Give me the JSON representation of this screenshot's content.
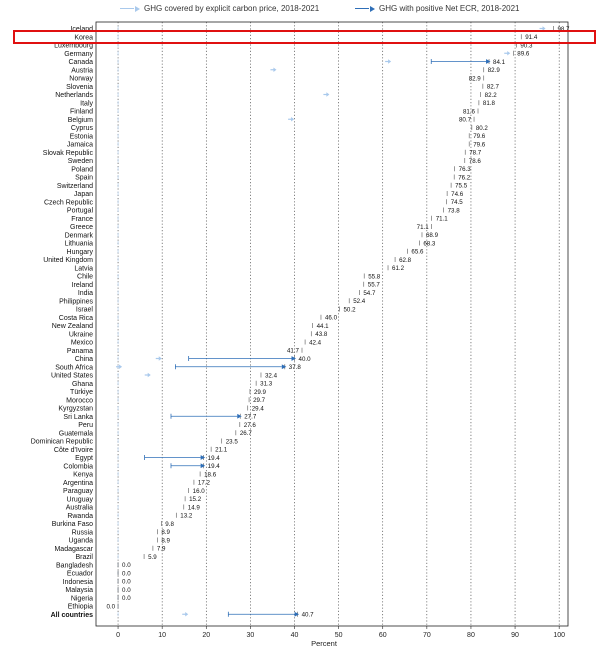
{
  "chart_data": {
    "type": "dot-arrow",
    "title": "",
    "xlabel": "Percent",
    "ylabel": "",
    "xlim": [
      -5,
      102
    ],
    "xticks": [
      0,
      10,
      20,
      30,
      40,
      50,
      60,
      70,
      80,
      90,
      100
    ],
    "grid": "vertical dotted",
    "legend_position": "top",
    "highlighted_category": "Korea",
    "series": [
      {
        "name": "GHG covered by explicit carbon price, 2018-2021",
        "color": "#a9c9ec"
      },
      {
        "name": "GHG with positive Net ECR, 2018-2021",
        "color": "#2f6fb8"
      }
    ],
    "categories": [
      "Iceland",
      "Korea",
      "Luxembourg",
      "Germany",
      "Canada",
      "Austria",
      "Norway",
      "Slovenia",
      "Netherlands",
      "Italy",
      "Finland",
      "Belgium",
      "Cyprus",
      "Estonia",
      "Jamaica",
      "Slovak Republic",
      "Sweden",
      "Poland",
      "Spain",
      "Switzerland",
      "Japan",
      "Czech Republic",
      "Portugal",
      "France",
      "Greece",
      "Denmark",
      "Lithuania",
      "Hungary",
      "United Kingdom",
      "Latvia",
      "Chile",
      "Ireland",
      "India",
      "Philippines",
      "Israel",
      "Costa Rica",
      "New Zealand",
      "Ukraine",
      "Mexico",
      "Panama",
      "China",
      "South Africa",
      "United States",
      "Ghana",
      "Türkiye",
      "Morocco",
      "Kyrgyzstan",
      "Sri Lanka",
      "Peru",
      "Guatemala",
      "Dominican Republic",
      "Côte d'Ivoire",
      "Egypt",
      "Colombia",
      "Kenya",
      "Argentina",
      "Paraguay",
      "Uruguay",
      "Australia",
      "Rwanda",
      "Burkina Faso",
      "Russia",
      "Uganda",
      "Madagascar",
      "Brazil",
      "Bangladesh",
      "Ecuador",
      "Indonesia",
      "Malaysia",
      "Nigeria",
      "Ethiopia",
      "All countries"
    ],
    "net_ecr_labels": [
      "98.7",
      "91.4",
      "90.3",
      "89.6",
      "84.1",
      "82.9",
      "82.9",
      "82.7",
      "82.2",
      "81.8",
      "81.6",
      "80.7",
      "80.2",
      "79.6",
      "79.6",
      "78.7",
      "78.6",
      "76.3",
      "76.2",
      "75.5",
      "74.6",
      "74.5",
      "73.8",
      "71.1",
      "71.1",
      "68.9",
      "68.3",
      "65.6",
      "62.8",
      "61.2",
      "55.8",
      "55.7",
      "54.7",
      "52.4",
      "50.2",
      "46.0",
      "44.1",
      "43.8",
      "42.4",
      "41.7",
      "40.0",
      "37.8",
      "32.4",
      "31.3",
      "29.9",
      "29.7",
      "29.4",
      "27.7",
      "27.6",
      "26.7",
      "23.5",
      "21.1",
      "19.4",
      "19.4",
      "18.6",
      "17.2",
      "16.0",
      "15.2",
      "14.9",
      "13.2",
      "9.8",
      "8.9",
      "8.9",
      "7.9",
      "5.9",
      "0.0",
      "0.0",
      "0.0",
      "0.0",
      "0.0",
      "0.0",
      "40.7"
    ],
    "net_ecr_values": [
      98.7,
      91.4,
      90.3,
      89.6,
      84.1,
      82.9,
      82.9,
      82.7,
      82.2,
      81.8,
      81.6,
      80.7,
      80.2,
      79.6,
      79.6,
      78.7,
      78.6,
      76.3,
      76.2,
      75.5,
      74.6,
      74.5,
      73.8,
      71.1,
      71.1,
      68.9,
      68.3,
      65.6,
      62.8,
      61.2,
      55.8,
      55.7,
      54.7,
      52.4,
      50.2,
      46.0,
      44.1,
      43.8,
      42.4,
      41.7,
      40.0,
      37.8,
      32.4,
      31.3,
      29.9,
      29.7,
      29.4,
      27.7,
      27.6,
      26.7,
      23.5,
      21.1,
      19.4,
      19.4,
      18.6,
      17.2,
      16.0,
      15.2,
      14.9,
      13.2,
      9.8,
      8.9,
      8.9,
      7.9,
      5.9,
      0.0,
      0.0,
      0.0,
      0.0,
      0.0,
      0.0,
      40.7
    ],
    "label_side": [
      "r",
      "r",
      "r",
      "r",
      "r",
      "r",
      "l",
      "r",
      "r",
      "r",
      "l",
      "l",
      "r",
      "r",
      "r",
      "r",
      "r",
      "r",
      "r",
      "r",
      "r",
      "r",
      "r",
      "r",
      "l",
      "r",
      "r",
      "r",
      "r",
      "r",
      "r",
      "r",
      "r",
      "r",
      "r",
      "r",
      "r",
      "r",
      "r",
      "l",
      "r",
      "r",
      "r",
      "r",
      "r",
      "r",
      "r",
      "r",
      "r",
      "r",
      "r",
      "r",
      "r",
      "r",
      "r",
      "r",
      "r",
      "r",
      "r",
      "r",
      "r",
      "r",
      "r",
      "r",
      "r",
      "r",
      "r",
      "r",
      "r",
      "r",
      "l",
      "r"
    ],
    "explicit_price_values": [
      96.0,
      null,
      null,
      88.0,
      61.0,
      35.0,
      null,
      null,
      47.0,
      null,
      null,
      39.0,
      null,
      null,
      null,
      null,
      null,
      null,
      null,
      null,
      null,
      null,
      null,
      null,
      null,
      null,
      null,
      null,
      null,
      null,
      null,
      null,
      null,
      null,
      null,
      null,
      null,
      null,
      null,
      null,
      9.0,
      0.0,
      6.5,
      null,
      null,
      null,
      null,
      null,
      null,
      null,
      null,
      null,
      null,
      null,
      null,
      null,
      null,
      null,
      null,
      null,
      null,
      null,
      null,
      null,
      null,
      null,
      null,
      null,
      null,
      null,
      null,
      15.0
    ],
    "marker_values": [
      null,
      null,
      null,
      null,
      71.0,
      null,
      null,
      null,
      null,
      null,
      null,
      null,
      null,
      null,
      null,
      null,
      null,
      null,
      null,
      null,
      null,
      null,
      null,
      null,
      null,
      null,
      null,
      null,
      null,
      null,
      null,
      null,
      null,
      null,
      null,
      null,
      null,
      null,
      null,
      null,
      16.0,
      13.0,
      null,
      null,
      null,
      null,
      null,
      12.0,
      null,
      null,
      null,
      null,
      6.0,
      12.0,
      null,
      null,
      null,
      null,
      null,
      null,
      null,
      null,
      null,
      null,
      null,
      null,
      null,
      null,
      null,
      null,
      null,
      25.0
    ]
  }
}
